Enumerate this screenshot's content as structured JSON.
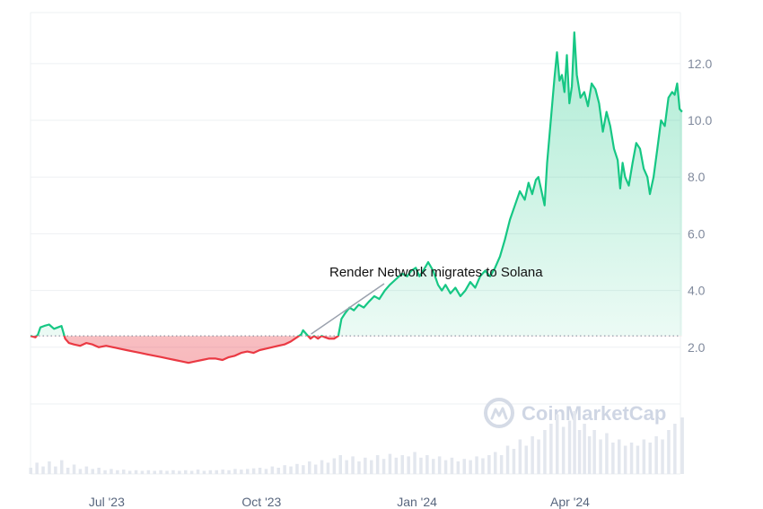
{
  "chart_data": {
    "type": "area",
    "baseline": 2.4,
    "ylim": [
      0,
      13.8
    ],
    "y_ticks": [
      "2.0",
      "4.0",
      "6.0",
      "8.0",
      "10.0",
      "12.0"
    ],
    "y_tick_values": [
      2,
      4,
      6,
      8,
      10,
      12
    ],
    "x_ticks": [
      "Jul '23",
      "Oct '23",
      "Jan '24",
      "Apr '24"
    ],
    "x_tick_positions": [
      0.123,
      0.373,
      0.624,
      0.871
    ],
    "annotation": "Render Network migrates to Solana",
    "annotation_x": 0.453,
    "watermark": "CoinMarketCap",
    "colors": {
      "up": "#16c784",
      "down": "#ea3943"
    },
    "points": [
      [
        0.0,
        2.4
      ],
      [
        0.008,
        2.35
      ],
      [
        0.012,
        2.45
      ],
      [
        0.016,
        2.7
      ],
      [
        0.022,
        2.75
      ],
      [
        0.03,
        2.8
      ],
      [
        0.038,
        2.65
      ],
      [
        0.044,
        2.7
      ],
      [
        0.05,
        2.75
      ],
      [
        0.056,
        2.3
      ],
      [
        0.062,
        2.15
      ],
      [
        0.07,
        2.1
      ],
      [
        0.08,
        2.05
      ],
      [
        0.09,
        2.15
      ],
      [
        0.1,
        2.1
      ],
      [
        0.11,
        2.0
      ],
      [
        0.122,
        2.05
      ],
      [
        0.133,
        2.0
      ],
      [
        0.144,
        1.95
      ],
      [
        0.155,
        1.9
      ],
      [
        0.166,
        1.85
      ],
      [
        0.177,
        1.8
      ],
      [
        0.188,
        1.75
      ],
      [
        0.2,
        1.7
      ],
      [
        0.212,
        1.65
      ],
      [
        0.222,
        1.6
      ],
      [
        0.233,
        1.55
      ],
      [
        0.244,
        1.5
      ],
      [
        0.255,
        1.45
      ],
      [
        0.266,
        1.5
      ],
      [
        0.277,
        1.55
      ],
      [
        0.288,
        1.6
      ],
      [
        0.299,
        1.6
      ],
      [
        0.31,
        1.55
      ],
      [
        0.32,
        1.65
      ],
      [
        0.33,
        1.7
      ],
      [
        0.34,
        1.8
      ],
      [
        0.35,
        1.85
      ],
      [
        0.36,
        1.8
      ],
      [
        0.37,
        1.9
      ],
      [
        0.38,
        1.95
      ],
      [
        0.39,
        2.0
      ],
      [
        0.4,
        2.05
      ],
      [
        0.41,
        2.1
      ],
      [
        0.42,
        2.2
      ],
      [
        0.43,
        2.35
      ],
      [
        0.437,
        2.45
      ],
      [
        0.44,
        2.6
      ],
      [
        0.446,
        2.45
      ],
      [
        0.452,
        2.3
      ],
      [
        0.458,
        2.4
      ],
      [
        0.464,
        2.3
      ],
      [
        0.47,
        2.4
      ],
      [
        0.476,
        2.35
      ],
      [
        0.482,
        2.3
      ],
      [
        0.49,
        2.3
      ],
      [
        0.497,
        2.4
      ],
      [
        0.502,
        3.0
      ],
      [
        0.508,
        3.2
      ],
      [
        0.515,
        3.4
      ],
      [
        0.522,
        3.3
      ],
      [
        0.53,
        3.5
      ],
      [
        0.538,
        3.4
      ],
      [
        0.546,
        3.6
      ],
      [
        0.555,
        3.8
      ],
      [
        0.563,
        3.7
      ],
      [
        0.572,
        4.0
      ],
      [
        0.58,
        4.2
      ],
      [
        0.59,
        4.4
      ],
      [
        0.6,
        4.6
      ],
      [
        0.608,
        4.5
      ],
      [
        0.615,
        4.7
      ],
      [
        0.622,
        4.8
      ],
      [
        0.628,
        4.5
      ],
      [
        0.634,
        4.7
      ],
      [
        0.642,
        5.0
      ],
      [
        0.65,
        4.7
      ],
      [
        0.658,
        4.2
      ],
      [
        0.664,
        4.0
      ],
      [
        0.67,
        4.2
      ],
      [
        0.678,
        3.9
      ],
      [
        0.686,
        4.1
      ],
      [
        0.694,
        3.8
      ],
      [
        0.702,
        4.0
      ],
      [
        0.71,
        4.3
      ],
      [
        0.718,
        4.1
      ],
      [
        0.726,
        4.5
      ],
      [
        0.734,
        4.7
      ],
      [
        0.742,
        4.5
      ],
      [
        0.75,
        4.8
      ],
      [
        0.758,
        5.2
      ],
      [
        0.766,
        5.8
      ],
      [
        0.774,
        6.5
      ],
      [
        0.782,
        7.0
      ],
      [
        0.79,
        7.5
      ],
      [
        0.798,
        7.2
      ],
      [
        0.804,
        7.8
      ],
      [
        0.81,
        7.4
      ],
      [
        0.816,
        7.9
      ],
      [
        0.82,
        8.0
      ],
      [
        0.824,
        7.6
      ],
      [
        0.83,
        7.0
      ],
      [
        0.834,
        8.5
      ],
      [
        0.84,
        10.0
      ],
      [
        0.846,
        11.5
      ],
      [
        0.85,
        12.4
      ],
      [
        0.854,
        11.4
      ],
      [
        0.858,
        11.6
      ],
      [
        0.862,
        11.0
      ],
      [
        0.866,
        12.3
      ],
      [
        0.87,
        10.6
      ],
      [
        0.874,
        11.2
      ],
      [
        0.878,
        13.1
      ],
      [
        0.882,
        11.6
      ],
      [
        0.888,
        10.8
      ],
      [
        0.894,
        11.0
      ],
      [
        0.9,
        10.5
      ],
      [
        0.906,
        11.3
      ],
      [
        0.912,
        11.1
      ],
      [
        0.918,
        10.6
      ],
      [
        0.924,
        9.6
      ],
      [
        0.93,
        10.3
      ],
      [
        0.936,
        9.8
      ],
      [
        0.942,
        9.0
      ],
      [
        0.948,
        8.6
      ],
      [
        0.952,
        7.6
      ],
      [
        0.956,
        8.5
      ],
      [
        0.96,
        8.0
      ],
      [
        0.966,
        7.7
      ],
      [
        0.972,
        8.5
      ],
      [
        0.978,
        9.2
      ],
      [
        0.984,
        9.0
      ],
      [
        0.99,
        8.3
      ],
      [
        0.996,
        8.0
      ],
      [
        1.0,
        7.4
      ],
      [
        1.006,
        8.0
      ],
      [
        1.012,
        9.0
      ],
      [
        1.018,
        10.0
      ],
      [
        1.024,
        9.8
      ],
      [
        1.03,
        10.8
      ],
      [
        1.036,
        11.0
      ],
      [
        1.04,
        10.9
      ],
      [
        1.044,
        11.3
      ],
      [
        1.048,
        10.4
      ],
      [
        1.052,
        10.3
      ]
    ],
    "volume": [
      [
        0.0,
        0.1
      ],
      [
        0.01,
        0.18
      ],
      [
        0.02,
        0.12
      ],
      [
        0.03,
        0.2
      ],
      [
        0.04,
        0.12
      ],
      [
        0.05,
        0.22
      ],
      [
        0.06,
        0.1
      ],
      [
        0.07,
        0.15
      ],
      [
        0.08,
        0.08
      ],
      [
        0.09,
        0.12
      ],
      [
        0.1,
        0.08
      ],
      [
        0.11,
        0.1
      ],
      [
        0.12,
        0.06
      ],
      [
        0.13,
        0.08
      ],
      [
        0.14,
        0.06
      ],
      [
        0.15,
        0.07
      ],
      [
        0.16,
        0.05
      ],
      [
        0.17,
        0.06
      ],
      [
        0.18,
        0.05
      ],
      [
        0.19,
        0.06
      ],
      [
        0.2,
        0.05
      ],
      [
        0.21,
        0.06
      ],
      [
        0.22,
        0.05
      ],
      [
        0.23,
        0.06
      ],
      [
        0.24,
        0.05
      ],
      [
        0.25,
        0.06
      ],
      [
        0.26,
        0.05
      ],
      [
        0.27,
        0.07
      ],
      [
        0.28,
        0.05
      ],
      [
        0.29,
        0.06
      ],
      [
        0.3,
        0.06
      ],
      [
        0.31,
        0.07
      ],
      [
        0.32,
        0.06
      ],
      [
        0.33,
        0.08
      ],
      [
        0.34,
        0.07
      ],
      [
        0.35,
        0.08
      ],
      [
        0.36,
        0.09
      ],
      [
        0.37,
        0.1
      ],
      [
        0.38,
        0.08
      ],
      [
        0.39,
        0.12
      ],
      [
        0.4,
        0.1
      ],
      [
        0.41,
        0.14
      ],
      [
        0.42,
        0.12
      ],
      [
        0.43,
        0.16
      ],
      [
        0.44,
        0.14
      ],
      [
        0.45,
        0.2
      ],
      [
        0.46,
        0.15
      ],
      [
        0.47,
        0.22
      ],
      [
        0.48,
        0.18
      ],
      [
        0.49,
        0.25
      ],
      [
        0.5,
        0.3
      ],
      [
        0.51,
        0.22
      ],
      [
        0.52,
        0.28
      ],
      [
        0.53,
        0.2
      ],
      [
        0.54,
        0.26
      ],
      [
        0.55,
        0.22
      ],
      [
        0.56,
        0.3
      ],
      [
        0.57,
        0.24
      ],
      [
        0.58,
        0.32
      ],
      [
        0.59,
        0.26
      ],
      [
        0.6,
        0.3
      ],
      [
        0.61,
        0.28
      ],
      [
        0.62,
        0.35
      ],
      [
        0.63,
        0.26
      ],
      [
        0.64,
        0.3
      ],
      [
        0.65,
        0.24
      ],
      [
        0.66,
        0.28
      ],
      [
        0.67,
        0.22
      ],
      [
        0.68,
        0.26
      ],
      [
        0.69,
        0.2
      ],
      [
        0.7,
        0.24
      ],
      [
        0.71,
        0.22
      ],
      [
        0.72,
        0.28
      ],
      [
        0.73,
        0.25
      ],
      [
        0.74,
        0.3
      ],
      [
        0.75,
        0.35
      ],
      [
        0.76,
        0.3
      ],
      [
        0.77,
        0.45
      ],
      [
        0.78,
        0.4
      ],
      [
        0.79,
        0.55
      ],
      [
        0.8,
        0.45
      ],
      [
        0.81,
        0.6
      ],
      [
        0.82,
        0.55
      ],
      [
        0.83,
        0.7
      ],
      [
        0.84,
        0.8
      ],
      [
        0.85,
        0.95
      ],
      [
        0.86,
        0.75
      ],
      [
        0.87,
        0.85
      ],
      [
        0.878,
        1.0
      ],
      [
        0.886,
        0.7
      ],
      [
        0.894,
        0.8
      ],
      [
        0.902,
        0.6
      ],
      [
        0.91,
        0.7
      ],
      [
        0.92,
        0.55
      ],
      [
        0.93,
        0.65
      ],
      [
        0.94,
        0.5
      ],
      [
        0.95,
        0.55
      ],
      [
        0.96,
        0.45
      ],
      [
        0.97,
        0.5
      ],
      [
        0.98,
        0.45
      ],
      [
        0.99,
        0.55
      ],
      [
        1.0,
        0.5
      ],
      [
        1.01,
        0.6
      ],
      [
        1.02,
        0.55
      ],
      [
        1.03,
        0.7
      ],
      [
        1.04,
        0.8
      ],
      [
        1.052,
        0.9
      ]
    ]
  }
}
